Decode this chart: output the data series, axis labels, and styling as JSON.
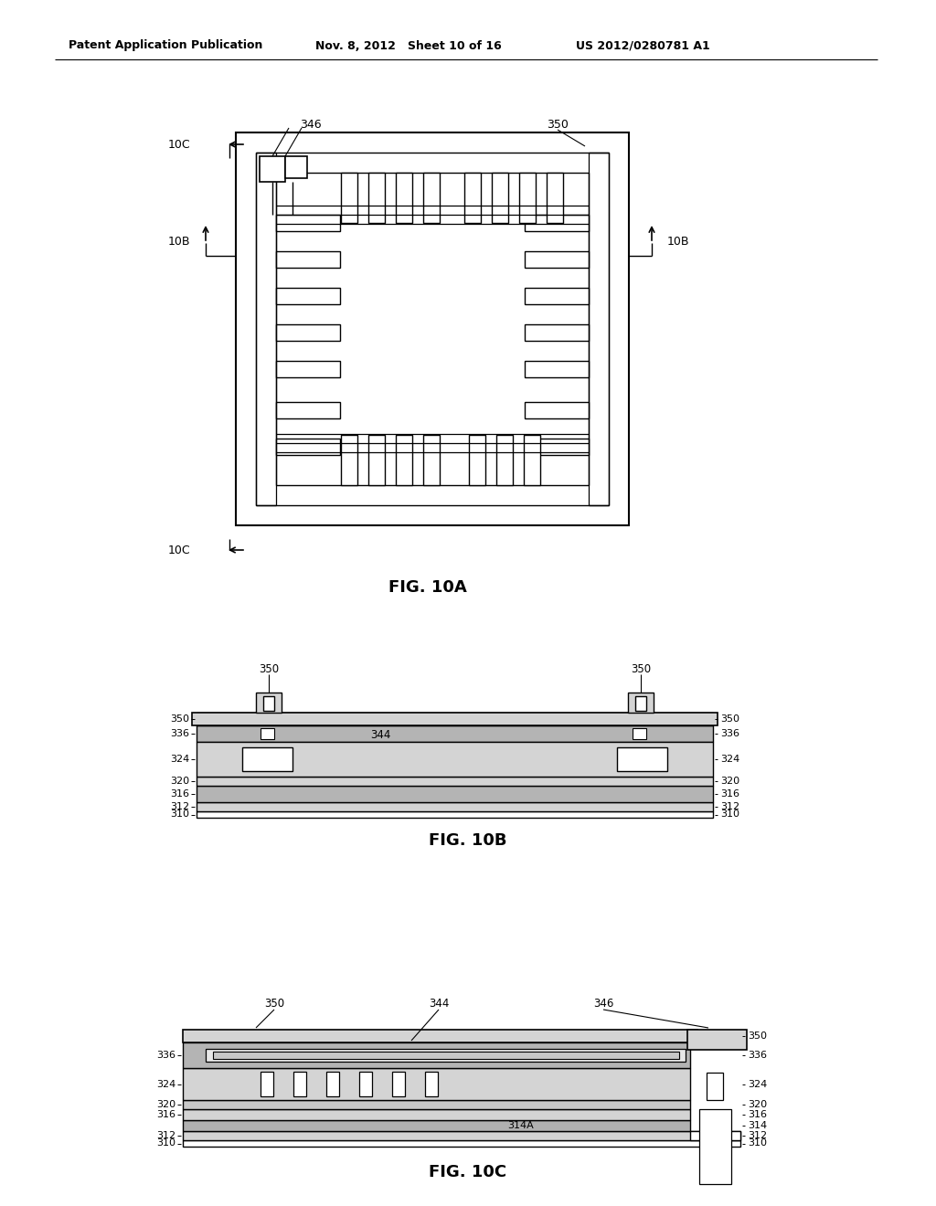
{
  "header_left": "Patent Application Publication",
  "header_mid": "Nov. 8, 2012   Sheet 10 of 16",
  "header_right": "US 2012/0280781 A1",
  "background": "#ffffff",
  "lc": "#000000",
  "gray1": "#c8c8c8",
  "gray2": "#e0e0e0",
  "darkgray": "#a0a0a0"
}
